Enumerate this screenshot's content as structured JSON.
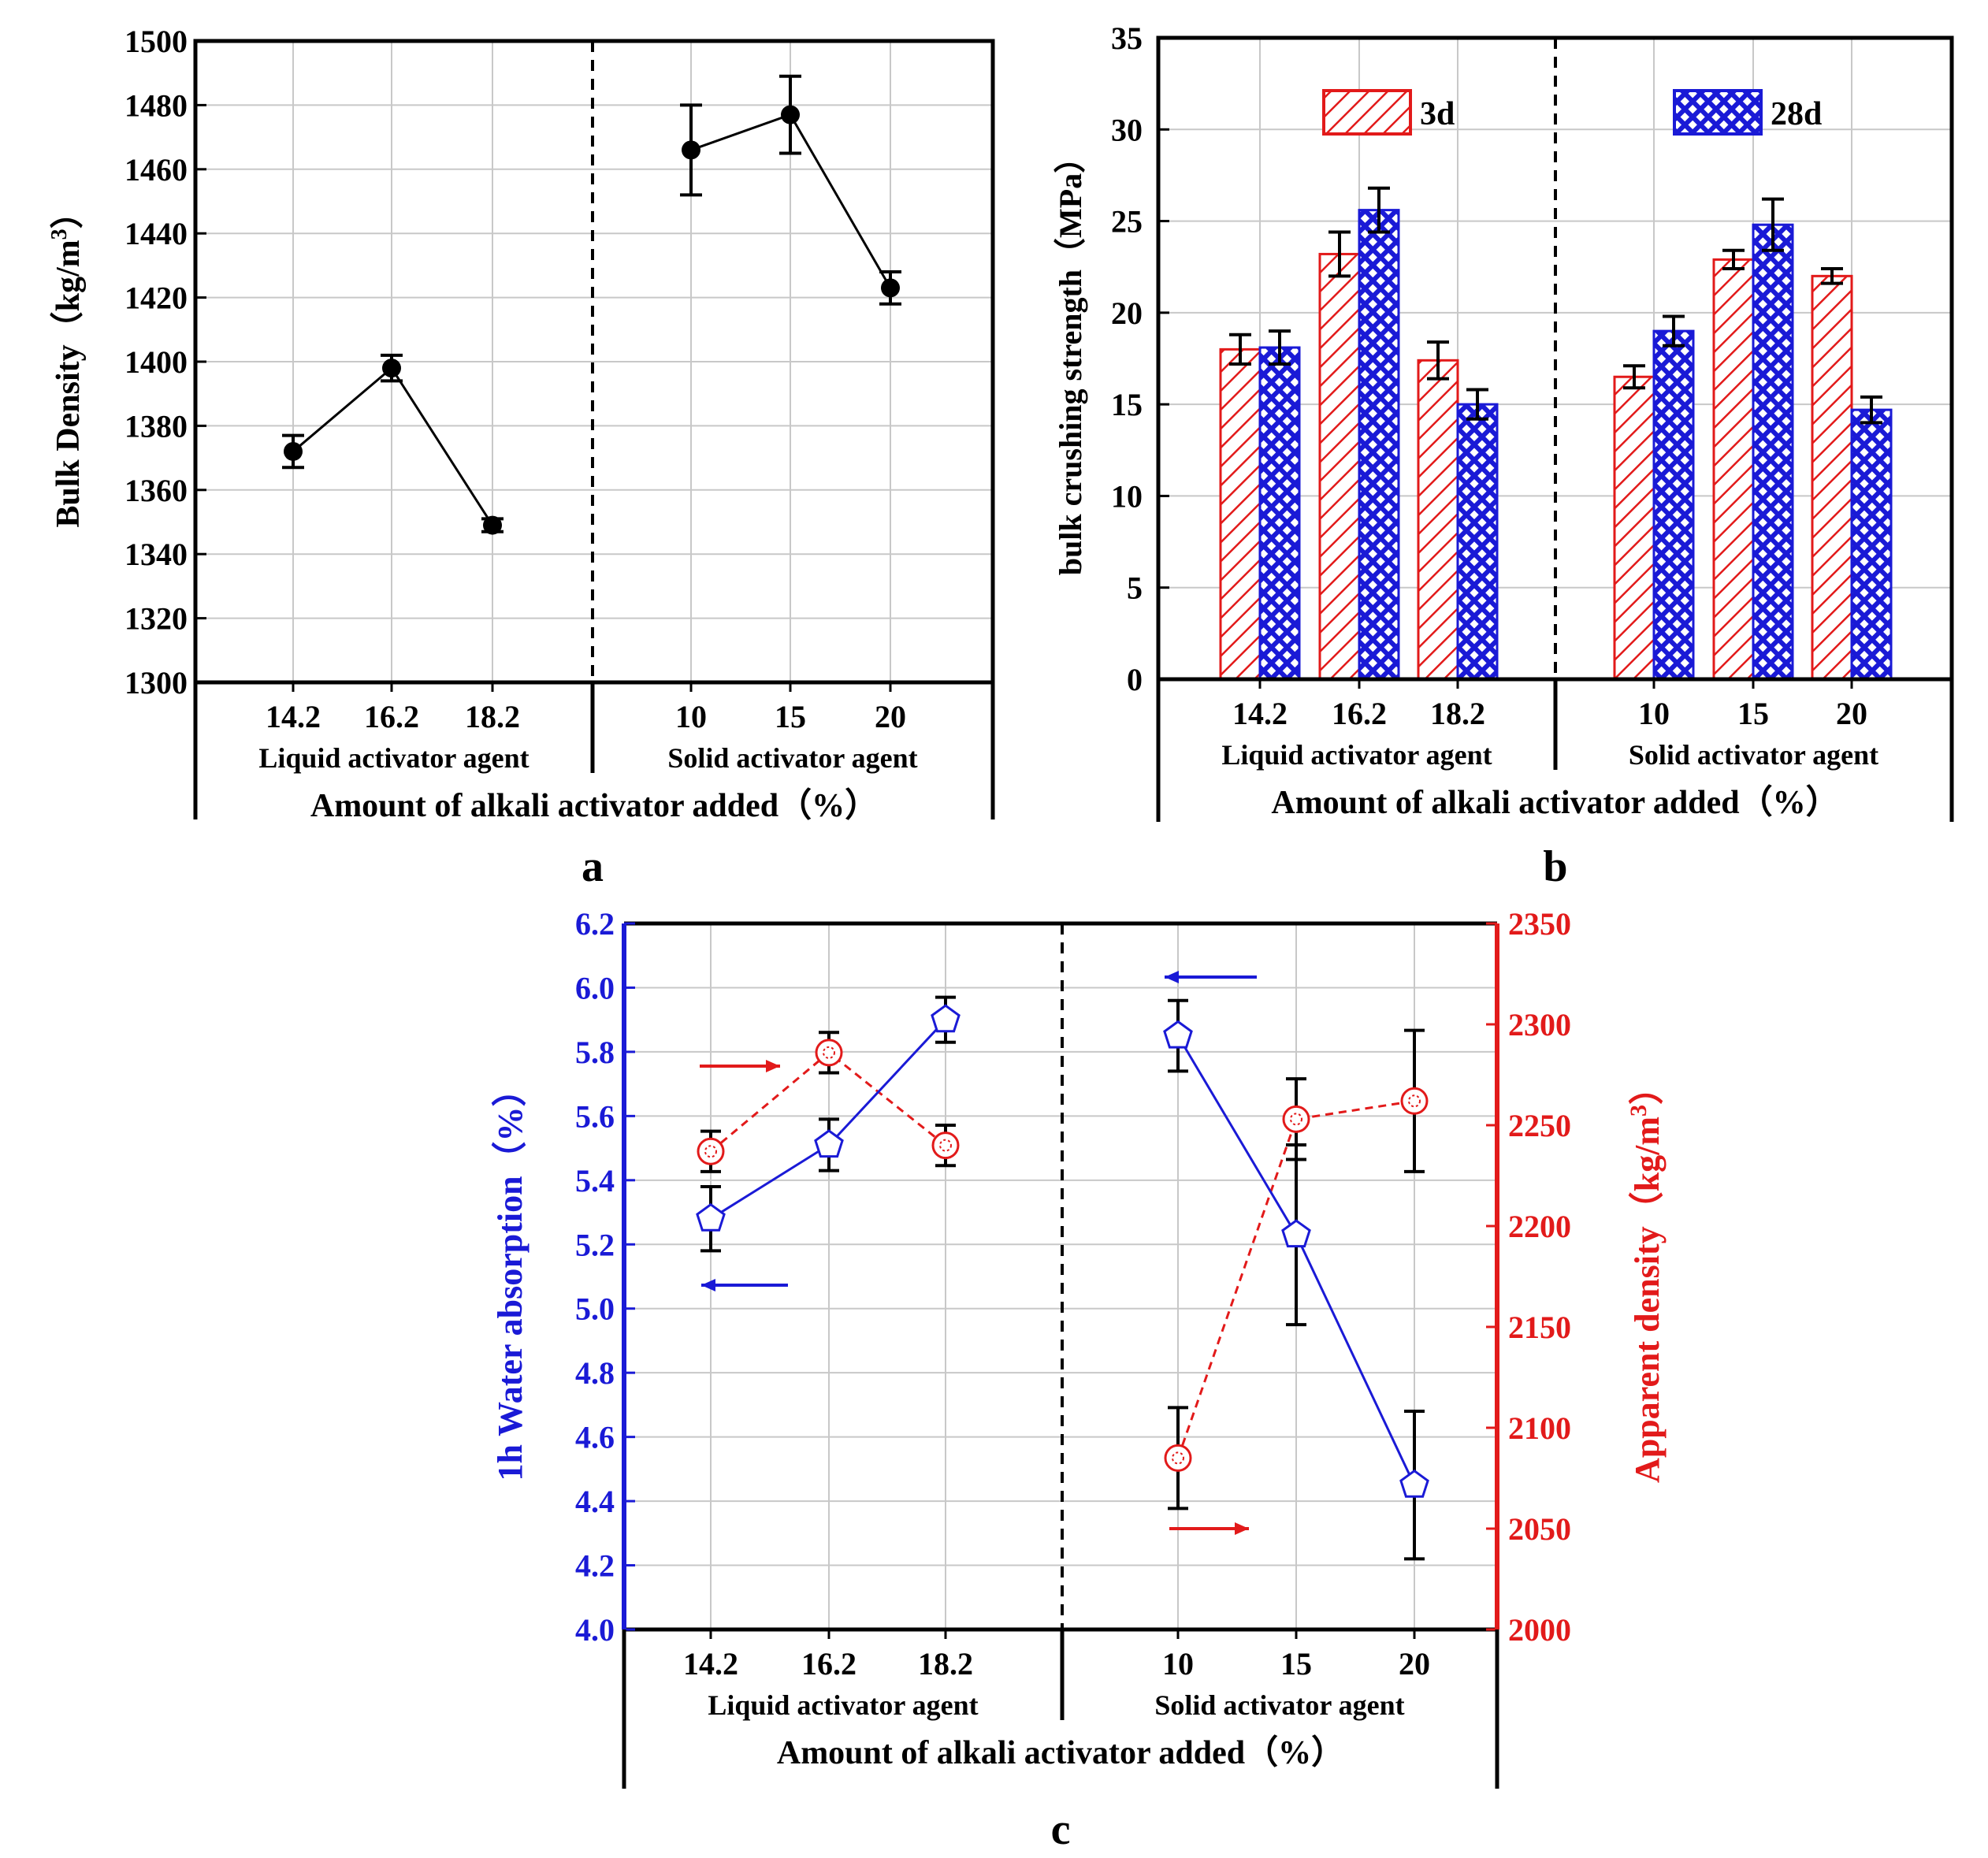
{
  "colors": {
    "axis": "#000000",
    "grid": "#c8c8c8",
    "line_black": "#000000",
    "water": "#1a1ad6",
    "density": "#e21a1a",
    "bar_3d": "#e21a1a",
    "bar_28d": "#1a1ad6"
  },
  "chart_data": [
    {
      "id": "a",
      "panel_label": "a",
      "type": "line",
      "ylabel_main": "Bulk Density（kg/m",
      "ylabel_sup": "3",
      "ylabel_end": "）",
      "ylim": [
        1300,
        1500
      ],
      "yticks": [
        1300,
        1320,
        1340,
        1360,
        1380,
        1400,
        1420,
        1440,
        1460,
        1480,
        1500
      ],
      "xlabel": "Amount of alkali activator added（%）",
      "groups": [
        {
          "name": "Liquid activator agent",
          "categories": [
            "14.2",
            "16.2",
            "18.2"
          ]
        },
        {
          "name": "Solid activator agent",
          "categories": [
            "10",
            "15",
            "20"
          ]
        }
      ],
      "series": [
        {
          "name": "Bulk Density",
          "values": [
            [
              1372,
              1398,
              1349
            ],
            [
              1466,
              1477,
              1423
            ]
          ],
          "errors": [
            [
              5,
              4,
              2
            ],
            [
              14,
              12,
              5
            ]
          ]
        }
      ]
    },
    {
      "id": "b",
      "panel_label": "b",
      "type": "bar",
      "ylabel": "bulk crushing strength（MPa）",
      "ylim": [
        0,
        35
      ],
      "yticks": [
        0,
        5,
        10,
        15,
        20,
        25,
        30,
        35
      ],
      "xlabel": "Amount of alkali activator added（%）",
      "groups": [
        {
          "name": "Liquid activator agent",
          "categories": [
            "14.2",
            "16.2",
            "18.2"
          ]
        },
        {
          "name": "Solid activator agent",
          "categories": [
            "10",
            "15",
            "20"
          ]
        }
      ],
      "series": [
        {
          "name": "3d",
          "values": [
            [
              18.0,
              23.2,
              17.4
            ],
            [
              16.5,
              22.9,
              22.0
            ]
          ],
          "errors": [
            [
              0.8,
              1.2,
              1.0
            ],
            [
              0.6,
              0.5,
              0.4
            ]
          ]
        },
        {
          "name": "28d",
          "values": [
            [
              18.1,
              25.6,
              15.0
            ],
            [
              19.0,
              24.8,
              14.7
            ]
          ],
          "errors": [
            [
              0.9,
              1.2,
              0.8
            ],
            [
              0.8,
              1.4,
              0.7
            ]
          ]
        }
      ],
      "legend": [
        "3d",
        "28d"
      ]
    },
    {
      "id": "c",
      "panel_label": "c",
      "type": "line",
      "ylabel": "1h Water absorption（%）",
      "ylabel2_main": "Apparent density（kg/m",
      "ylabel2_sup": "3",
      "ylabel2_end": "）",
      "ylim": [
        4.0,
        6.2
      ],
      "yticks": [
        "4.0",
        "4.2",
        "4.4",
        "4.6",
        "4.8",
        "5.0",
        "5.2",
        "5.4",
        "5.6",
        "5.8",
        "6.0",
        "6.2"
      ],
      "y2lim": [
        2000,
        2350
      ],
      "y2ticks": [
        2000,
        2050,
        2100,
        2150,
        2200,
        2250,
        2300,
        2350
      ],
      "xlabel": "Amount of alkali activator added（%）",
      "groups": [
        {
          "name": "Liquid activator agent",
          "categories": [
            "14.2",
            "16.2",
            "18.2"
          ]
        },
        {
          "name": "Solid activator agent",
          "categories": [
            "10",
            "15",
            "20"
          ]
        }
      ],
      "series": [
        {
          "name": "1h Water absorption",
          "axis": "left",
          "values": [
            [
              5.28,
              5.51,
              5.9
            ],
            [
              5.85,
              5.23,
              4.45
            ]
          ],
          "errors": [
            [
              0.1,
              0.08,
              0.07
            ],
            [
              0.11,
              0.28,
              0.23
            ]
          ]
        },
        {
          "name": "Apparent density",
          "axis": "right",
          "values": [
            [
              2237,
              2286,
              2240
            ],
            [
              2085,
              2253,
              2262
            ]
          ],
          "errors": [
            [
              10,
              10,
              10
            ],
            [
              25,
              20,
              35
            ]
          ]
        }
      ]
    }
  ]
}
